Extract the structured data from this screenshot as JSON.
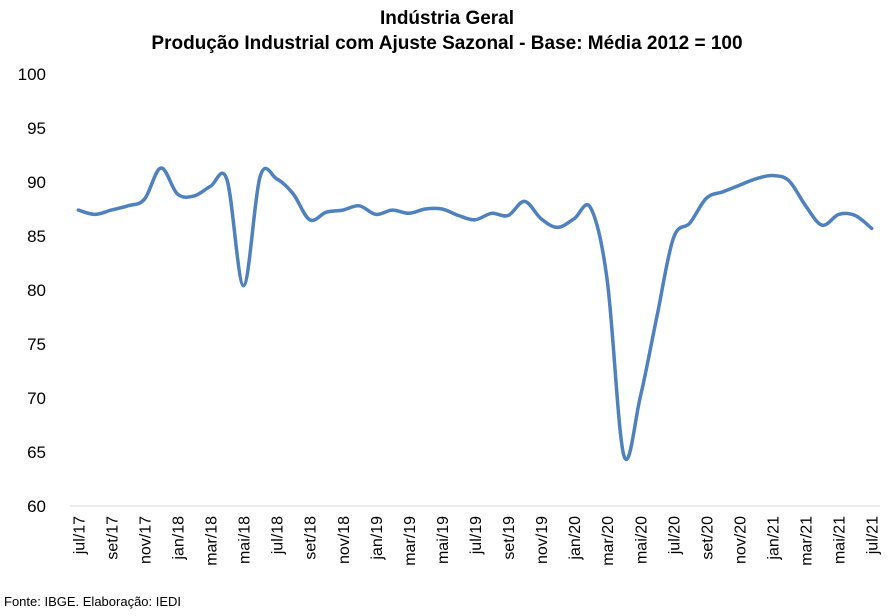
{
  "chart_data": {
    "type": "line",
    "title": "Indústria Geral",
    "subtitle": "Produção Industrial com Ajuste Sazonal - Base: Média 2012 = 100",
    "xlabel": "",
    "ylabel": "",
    "ylim": [
      60,
      100
    ],
    "yticks": [
      60,
      65,
      70,
      75,
      80,
      85,
      90,
      95,
      100
    ],
    "grid": false,
    "legend": "none",
    "x_tick_labels": [
      "jul/17",
      "set/17",
      "nov/17",
      "jan/18",
      "mar/18",
      "mai/18",
      "jul/18",
      "set/18",
      "nov/18",
      "jan/19",
      "mar/19",
      "mai/19",
      "jul/19",
      "set/19",
      "nov/19",
      "jan/20",
      "mar/20",
      "mai/20",
      "jul/20",
      "set/20",
      "nov/20",
      "jan/21",
      "mar/21",
      "mai/21",
      "jul/21"
    ],
    "x": [
      "jul/17",
      "ago/17",
      "set/17",
      "out/17",
      "nov/17",
      "dez/17",
      "jan/18",
      "fev/18",
      "mar/18",
      "abr/18",
      "mai/18",
      "jun/18",
      "jul/18",
      "ago/18",
      "set/18",
      "out/18",
      "nov/18",
      "dez/18",
      "jan/19",
      "fev/19",
      "mar/19",
      "abr/19",
      "mai/19",
      "jun/19",
      "jul/19",
      "ago/19",
      "set/19",
      "out/19",
      "nov/19",
      "dez/19",
      "jan/20",
      "fev/20",
      "mar/20",
      "abr/20",
      "mai/20",
      "jun/20",
      "jul/20",
      "ago/20",
      "set/20",
      "out/20",
      "nov/20",
      "dez/20",
      "jan/21",
      "fev/21",
      "mar/21",
      "abr/21",
      "mai/21",
      "jun/21",
      "jul/21"
    ],
    "series": [
      {
        "values": [
          87.4,
          87.0,
          87.4,
          87.8,
          88.4,
          91.3,
          88.9,
          88.7,
          89.6,
          90.2,
          80.4,
          90.5,
          90.3,
          88.9,
          86.5,
          87.2,
          87.4,
          87.8,
          87.0,
          87.4,
          87.1,
          87.5,
          87.5,
          86.9,
          86.5,
          87.1,
          86.9,
          88.2,
          86.6,
          85.8,
          86.6,
          87.6,
          80.9,
          64.7,
          70.1,
          77.5,
          84.8,
          86.2,
          88.5,
          89.1,
          89.7,
          90.3,
          90.6,
          90.1,
          87.8,
          86.0,
          87.0,
          86.9,
          85.7
        ]
      }
    ],
    "line_color": "#4f81bd",
    "source_note": "Fonte: IBGE. Elaboração: IEDI"
  }
}
